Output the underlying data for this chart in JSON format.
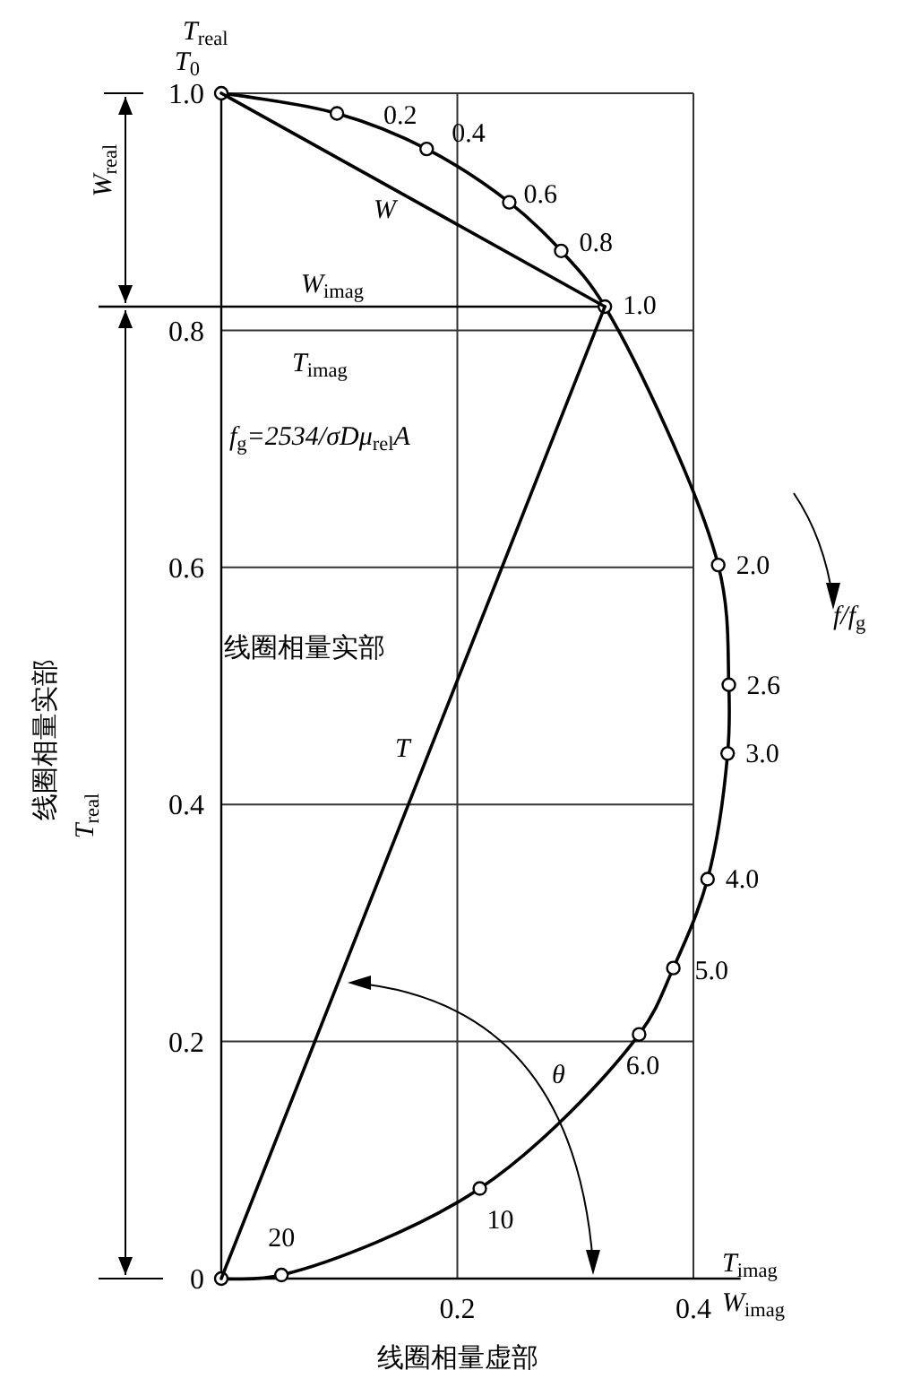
{
  "chart_data": {
    "type": "line",
    "xlabel": "线圈相量虚部",
    "ylabel": "线圈相量实部",
    "xlim": [
      0,
      0.44
    ],
    "ylim": [
      0,
      1
    ],
    "xticks": [
      {
        "value": 0,
        "label": null
      },
      0.2,
      0.4
    ],
    "yticks": [
      0,
      0.2,
      0.4,
      0.6,
      0.8,
      {
        "value": 1,
        "label": "1.0"
      }
    ],
    "grid": true,
    "legend": false,
    "ref_lines": [
      {
        "axis": "y",
        "value": 0.82,
        "label": "W$_{imag}$"
      }
    ],
    "series": [
      {
        "type": "line",
        "marker": "circle",
        "line_style": "solid",
        "color": "#000000",
        "x": [
          0,
          0.098,
          0.174,
          0.244,
          0.288,
          0.325,
          0.421,
          0.43,
          0.429,
          0.412,
          0.383,
          0.354,
          0.219,
          0.051,
          0
        ],
        "values": [
          1.0,
          0.983,
          0.953,
          0.908,
          0.867,
          0.82,
          0.602,
          0.501,
          0.443,
          0.337,
          0.262,
          0.206,
          0.076,
          0.003,
          0
        ]
      },
      {
        "name": "W",
        "type": "line",
        "marker": "none",
        "line_style": "solid",
        "color": "#000000",
        "x": [
          0,
          0.325
        ],
        "values": [
          1.0,
          0.82
        ]
      },
      {
        "name": "T",
        "type": "line",
        "marker": "none",
        "line_style": "solid",
        "color": "#000000",
        "x": [
          0,
          0.325
        ],
        "values": [
          0,
          0.82
        ]
      }
    ],
    "annotations": [
      {
        "text": "T$_{0}$",
        "x": 0,
        "y": 1.0
      },
      {
        "text": "0.2",
        "x": 0.098,
        "y": 0.983
      },
      {
        "text": "0.4",
        "x": 0.174,
        "y": 0.953
      },
      {
        "text": "0.6",
        "x": 0.244,
        "y": 0.908
      },
      {
        "text": "0.8",
        "x": 0.288,
        "y": 0.867
      },
      {
        "text": "1.0",
        "x": 0.325,
        "y": 0.82
      },
      {
        "text": "2.0",
        "x": 0.421,
        "y": 0.602
      },
      {
        "text": "2.6",
        "x": 0.43,
        "y": 0.501
      },
      {
        "text": "3.0",
        "x": 0.429,
        "y": 0.443
      },
      {
        "text": "4.0",
        "x": 0.412,
        "y": 0.337
      },
      {
        "text": "5.0",
        "x": 0.383,
        "y": 0.262
      },
      {
        "text": "6.0",
        "x": 0.354,
        "y": 0.206
      },
      {
        "text": "10",
        "x": 0.219,
        "y": 0.076
      },
      {
        "text": "20",
        "x": 0.051,
        "y": 0.003
      },
      "T$_{real}$",
      "W$_{real}$",
      "T$_{imag}$",
      "f$_{g}$=2534/σDμ$_{rel}$A",
      "线圈相量实部",
      "T$_{real}$",
      "θ",
      "f/f$_{g}$",
      "T$_{imag}$",
      "W$_{imag}$"
    ]
  }
}
